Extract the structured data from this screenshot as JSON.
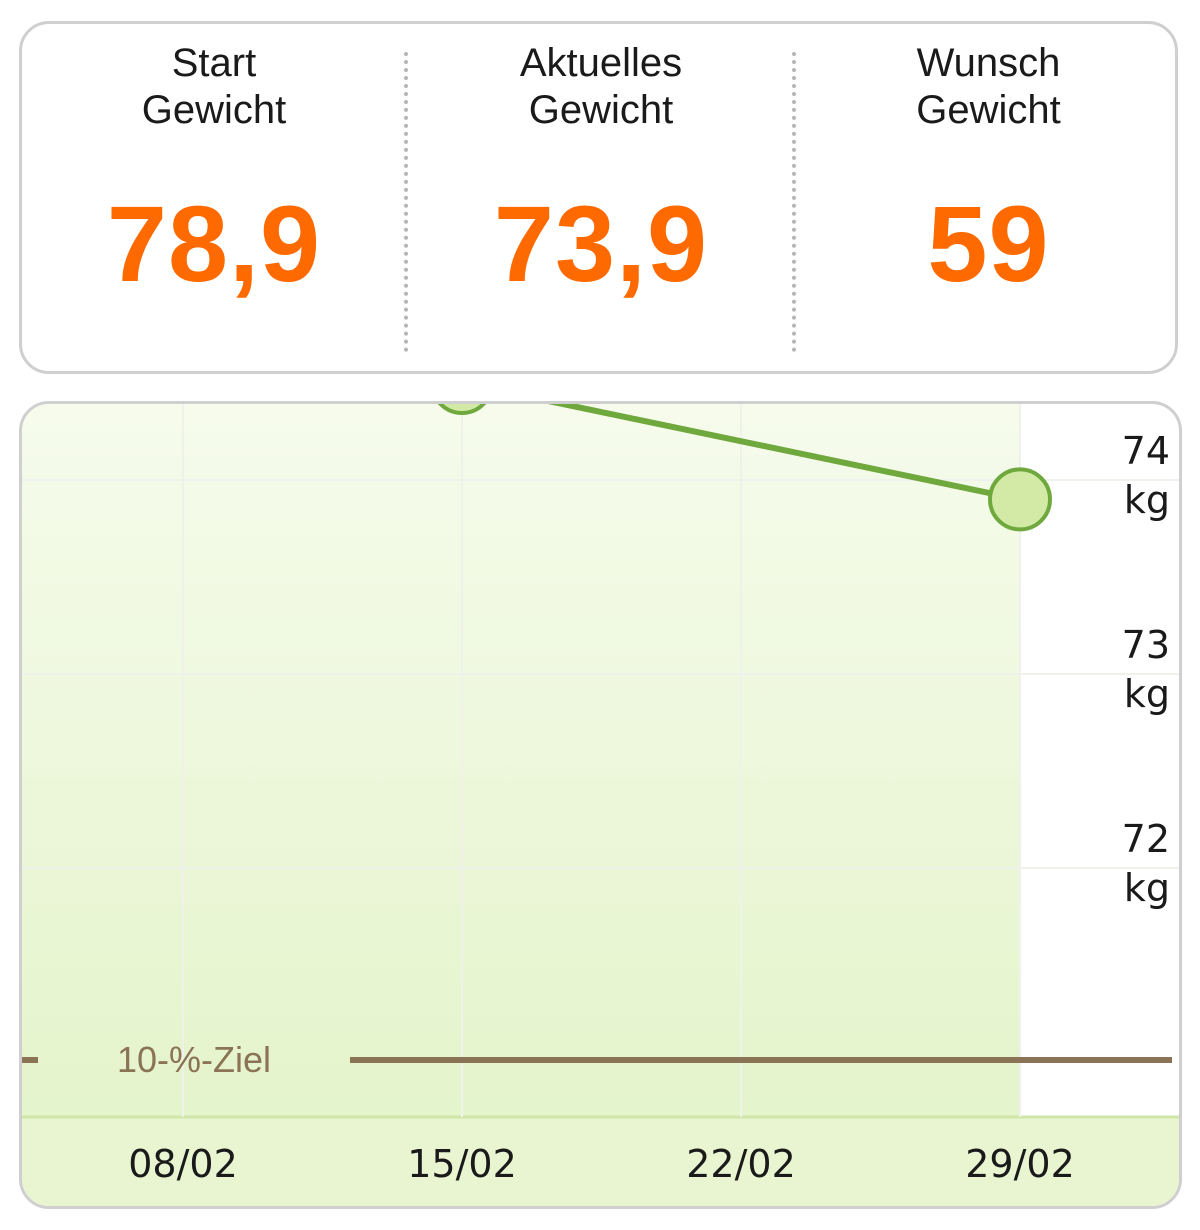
{
  "stats": {
    "start": {
      "label_line1": "Start",
      "label_line2": "Gewicht",
      "value": "78,9"
    },
    "current": {
      "label_line1": "Aktuelles",
      "label_line2": "Gewicht",
      "value": "73,9"
    },
    "target": {
      "label_line1": "Wunsch",
      "label_line2": "Gewicht",
      "value": "59"
    },
    "value_color": "#ff6a00"
  },
  "chart_data": {
    "type": "line",
    "x_ticks": [
      "08/02",
      "15/02",
      "22/02",
      "29/02"
    ],
    "y_ticks": [
      {
        "value": 74,
        "label_line1": "74",
        "label_line2": "kg"
      },
      {
        "value": 73,
        "label_line1": "73",
        "label_line2": "kg"
      },
      {
        "value": 72,
        "label_line1": "72",
        "label_line2": "kg"
      }
    ],
    "series": [
      {
        "points": [
          {
            "x": "15/02",
            "y": 74.5
          },
          {
            "x": "29/02",
            "y": 73.9
          }
        ],
        "color": "#6fa83c",
        "marker_fill": "#d2eaa5"
      }
    ],
    "goal_line": {
      "label": "10-%-Ziel",
      "color": "#8b7355"
    },
    "area_fill": "#e8f5d0",
    "grid": true,
    "y_axis_position": "right"
  }
}
